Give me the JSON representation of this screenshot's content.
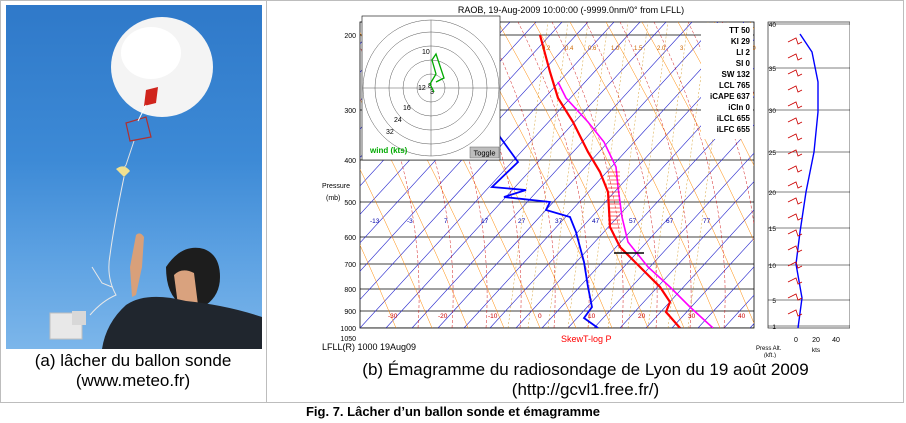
{
  "photo": {
    "caption_line1": "(a) lâcher du ballon sonde",
    "caption_line2": "(www.meteo.fr)"
  },
  "emagram": {
    "header": "RAOB, 19-Aug-2009 10:00:00 (-9999.0nm/0° from LFLL)",
    "pressure_ticks": [
      "200",
      "300",
      "400",
      "500",
      "600",
      "700",
      "800",
      "900",
      "1000",
      "1050"
    ],
    "pressure_label": [
      "Pressure",
      "(mb)"
    ],
    "temperature_row_upper": [
      "-13",
      "-3",
      "7",
      "17",
      "27",
      "37",
      "47",
      "57",
      "67",
      "77"
    ],
    "temperature_row_lower": [
      "-30",
      "-20",
      "-10",
      "0",
      "10",
      "20",
      "30",
      "40"
    ],
    "mixing_ratio_labels": [
      "0.2",
      "0.4",
      "0.6",
      "1.0",
      "1.5",
      "2.0",
      "3",
      "5",
      "7",
      "10"
    ],
    "indices": [
      {
        "name": "TT",
        "value": "50"
      },
      {
        "name": "KI",
        "value": "29"
      },
      {
        "name": "LI",
        "value": "2"
      },
      {
        "name": "SI",
        "value": "0"
      },
      {
        "name": "SW",
        "value": "132"
      },
      {
        "name": "LCL",
        "value": "765"
      },
      {
        "name": "iCAPE",
        "value": "637"
      },
      {
        "name": "iCIn",
        "value": "0"
      },
      {
        "name": "iLCL",
        "value": "655"
      },
      {
        "name": "iLFC",
        "value": "655"
      }
    ],
    "hodograph_rings": [
      "16",
      "24",
      "32"
    ],
    "hodograph_inner": [
      "10",
      "12",
      "8",
      "3"
    ],
    "wind_label": "wind (kts)",
    "toggle_label": "Toggle",
    "footer_left": "LFLL(R) 1000 19Aug09",
    "footer_center": "SkewT-log P",
    "alt_ticks": [
      "40",
      "35",
      "30",
      "25",
      "20",
      "15",
      "10",
      "5",
      "1"
    ],
    "alt_axis_label": [
      "Press Alt.",
      "(kft.)"
    ],
    "wind_axis_ticks": [
      "0",
      "20",
      "40"
    ],
    "wind_axis_unit": "kts",
    "colors": {
      "temperature": "#ff0000",
      "dewpoint": "#0000ff",
      "parcel": "#ff00ff",
      "isotherms": "#2222cc",
      "dry_adiabats": "#ff8800",
      "moist_adiabats": "#cc0000",
      "hodograph": "#00aa00"
    }
  },
  "emagram_caption_line1": "(b) Émagramme du radiosondage de Lyon du 19 août 2009",
  "emagram_caption_line2": "(http://gcvl1.free.fr/)",
  "figure_title": "Fig. 7. Lâcher d’un ballon sonde et émagramme"
}
